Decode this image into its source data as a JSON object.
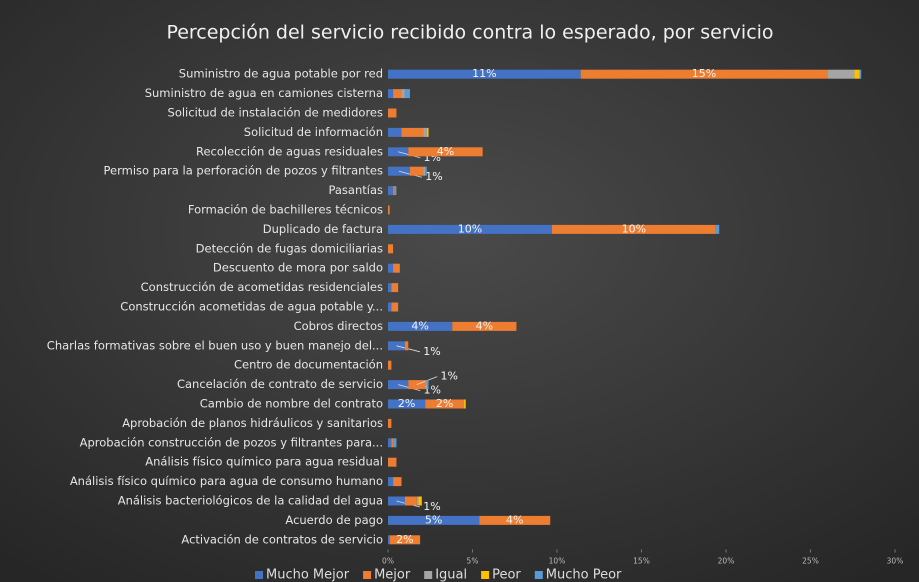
{
  "chart_data": {
    "type": "stacked_barh",
    "title": "Percepción del servicio recibido contra lo esperado, por servicio",
    "categories": [
      "Suministro de agua potable por red",
      "Suministro de agua en camiones cisterna",
      "Solicitud de instalación de medidores",
      "Solicitud de información",
      "Recolección de aguas residuales",
      "Permiso para la perforación de pozos y filtrantes",
      "Pasantías",
      "Formación de bachilleres técnicos",
      "Duplicado de factura",
      "Detección de fugas domiciliarias",
      "Descuento de mora por saldo",
      "Construcción de acometidas residenciales",
      "Construcción acometidas de agua potable y...",
      "Cobros directos",
      "Charlas formativas sobre el buen uso y buen manejo del...",
      "Centro de documentación",
      "Cancelación de contrato de servicio",
      "Cambio de nombre del contrato",
      "Aprobación de planos hidráulicos y sanitarios",
      "Aprobación construcción de pozos y filtrantes para...",
      "Análisis físico químico para agua residual",
      "Análisis físico químico para agua de consumo humano",
      "Análisis bacteriológicos de la calidad del agua",
      "Acuerdo de pago",
      "Activación de contratos de servicio"
    ],
    "series": [
      {
        "name": "Mucho Mejor",
        "color": "#4472c4",
        "values": [
          11.4,
          0.3,
          0,
          0.8,
          1.2,
          1.3,
          0.3,
          0,
          9.7,
          0,
          0.3,
          0.2,
          0.2,
          3.8,
          1.0,
          0,
          1.2,
          2.2,
          0,
          0.2,
          0,
          0.3,
          1.0,
          5.4,
          0.1
        ],
        "value_labels": [
          "11%",
          null,
          null,
          null,
          "1%",
          "1%",
          null,
          null,
          "10%",
          null,
          null,
          null,
          null,
          "4%",
          "1%",
          null,
          "1%",
          "2%",
          null,
          null,
          null,
          null,
          "1%",
          "5%",
          null
        ]
      },
      {
        "name": "Mejor",
        "color": "#ed7d31",
        "values": [
          14.6,
          0.5,
          0.5,
          1.3,
          4.4,
          0.8,
          0.1,
          0.1,
          9.7,
          0.3,
          0.4,
          0.4,
          0.4,
          3.8,
          0.2,
          0.2,
          1.0,
          2.3,
          0.2,
          0.1,
          0.5,
          0.5,
          0.7,
          4.2,
          1.8
        ],
        "value_labels": [
          "15%",
          null,
          null,
          null,
          "4%",
          null,
          null,
          null,
          "10%",
          null,
          null,
          null,
          null,
          "4%",
          null,
          null,
          "1%",
          "2%",
          null,
          null,
          null,
          null,
          null,
          "4%",
          "2%"
        ]
      },
      {
        "name": "Igual",
        "color": "#a5a5a5",
        "values": [
          1.6,
          0.2,
          0,
          0.2,
          0,
          0.1,
          0,
          0,
          0,
          0,
          0,
          0,
          0,
          0,
          0,
          0,
          0.1,
          0,
          0,
          0,
          0,
          0,
          0.1,
          0,
          0
        ]
      },
      {
        "name": "Peor",
        "color": "#ffc000",
        "values": [
          0.3,
          0,
          0,
          0.1,
          0,
          0,
          0,
          0,
          0,
          0,
          0,
          0,
          0,
          0,
          0,
          0,
          0,
          0.1,
          0,
          0,
          0,
          0,
          0.2,
          0,
          0
        ]
      },
      {
        "name": "Mucho Peor",
        "color": "#5b9bd5",
        "values": [
          0.1,
          0.3,
          0,
          0,
          0,
          0.1,
          0.1,
          0,
          0.2,
          0,
          0,
          0,
          0,
          0,
          0,
          0,
          0.1,
          0,
          0,
          0.2,
          0,
          0,
          0,
          0,
          0
        ]
      }
    ],
    "xlim": [
      0,
      30
    ],
    "xticks": [
      {
        "value": 0,
        "label": "0%"
      },
      {
        "value": 5,
        "label": "5%"
      },
      {
        "value": 10,
        "label": "10%"
      },
      {
        "value": 15,
        "label": "15%"
      },
      {
        "value": 20,
        "label": "20%"
      },
      {
        "value": 25,
        "label": "25%"
      },
      {
        "value": 30,
        "label": "30%"
      }
    ],
    "legend": "bottom"
  }
}
